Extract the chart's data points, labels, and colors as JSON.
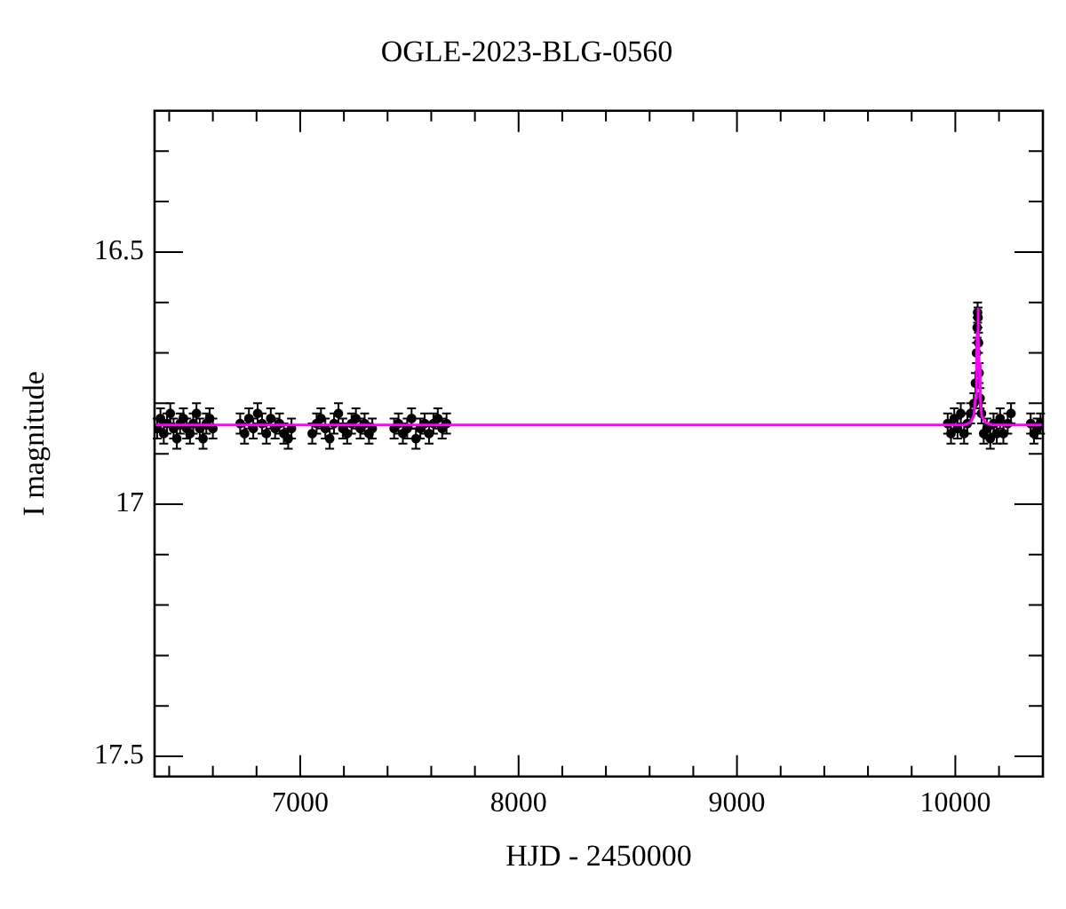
{
  "chart_data": {
    "type": "scatter",
    "title": "OGLE-2023-BLG-0560",
    "xlabel": "HJD - 2450000",
    "ylabel": "I magnitude",
    "xlim": [
      6333,
      10401
    ],
    "ylim": [
      17.54,
      16.22
    ],
    "xticks": [
      {
        "value": 6400,
        "label": null
      },
      {
        "value": 6600,
        "label": null
      },
      {
        "value": 6800,
        "label": null
      },
      7000,
      {
        "value": 7200,
        "label": null
      },
      {
        "value": 7400,
        "label": null
      },
      {
        "value": 7600,
        "label": null
      },
      {
        "value": 7800,
        "label": null
      },
      8000,
      {
        "value": 8200,
        "label": null
      },
      {
        "value": 8400,
        "label": null
      },
      {
        "value": 8600,
        "label": null
      },
      {
        "value": 8800,
        "label": null
      },
      9000,
      {
        "value": 9200,
        "label": null
      },
      {
        "value": 9400,
        "label": null
      },
      {
        "value": 9600,
        "label": null
      },
      {
        "value": 9800,
        "label": null
      },
      10000,
      {
        "value": 10200,
        "label": null
      }
    ],
    "yticks": [
      {
        "value": 16.3,
        "label": null
      },
      {
        "value": 16.4,
        "label": null
      },
      16.5,
      {
        "value": 16.6,
        "label": null
      },
      {
        "value": 16.7,
        "label": null
      },
      {
        "value": 16.8,
        "label": null
      },
      {
        "value": 16.9,
        "label": null
      },
      17,
      {
        "value": 17.1,
        "label": null
      },
      {
        "value": 17.2,
        "label": null
      },
      {
        "value": 17.3,
        "label": null
      },
      {
        "value": 17.4,
        "label": null
      },
      17.5
    ],
    "marker": "circle",
    "series": [
      {
        "type": "scatter",
        "color": "#000000",
        "x": [
          6345,
          6360,
          6375,
          6390,
          6405,
          6420,
          6435,
          6450,
          6465,
          6480,
          6495,
          6510,
          6525,
          6540,
          6555,
          6570,
          6585,
          6600,
          6725,
          6745,
          6765,
          6785,
          6805,
          6825,
          6845,
          6865,
          6885,
          6905,
          6925,
          6945,
          6960,
          7055,
          7075,
          7095,
          7115,
          7135,
          7155,
          7175,
          7195,
          7215,
          7235,
          7255,
          7275,
          7295,
          7315,
          7330,
          7430,
          7450,
          7470,
          7490,
          7510,
          7530,
          7550,
          7570,
          7590,
          7610,
          7630,
          7650,
          7670,
          9965,
          9980,
          9995,
          10010,
          10025,
          10040,
          10055,
          10070,
          10085,
          10092,
          10097,
          10100,
          10102,
          10104,
          10106,
          10109,
          10113,
          10120,
          10130,
          10145,
          10160,
          10175,
          10190,
          10205,
          10220,
          10240,
          10255,
          10345,
          10360,
          10375,
          10390
        ],
        "values": [
          16.85,
          16.83,
          16.86,
          16.84,
          16.82,
          16.85,
          16.87,
          16.84,
          16.83,
          16.85,
          16.86,
          16.84,
          16.82,
          16.85,
          16.87,
          16.84,
          16.83,
          16.85,
          16.84,
          16.86,
          16.83,
          16.85,
          16.82,
          16.84,
          16.86,
          16.83,
          16.85,
          16.84,
          16.86,
          16.87,
          16.85,
          16.86,
          16.84,
          16.83,
          16.85,
          16.87,
          16.84,
          16.82,
          16.85,
          16.86,
          16.84,
          16.83,
          16.85,
          16.84,
          16.86,
          16.85,
          16.85,
          16.84,
          16.86,
          16.85,
          16.83,
          16.87,
          16.85,
          16.84,
          16.86,
          16.84,
          16.83,
          16.85,
          16.84,
          16.84,
          16.86,
          16.83,
          16.85,
          16.82,
          16.86,
          16.84,
          16.82,
          16.8,
          16.76,
          16.7,
          16.65,
          16.62,
          16.63,
          16.68,
          16.74,
          16.79,
          16.82,
          16.86,
          16.85,
          16.87,
          16.84,
          16.86,
          16.83,
          16.86,
          16.84,
          16.82,
          16.84,
          16.86,
          16.85,
          16.84
        ],
        "errors": [
          0.02,
          0.02,
          0.02,
          0.02,
          0.02,
          0.02,
          0.02,
          0.02,
          0.02,
          0.02,
          0.02,
          0.02,
          0.02,
          0.02,
          0.02,
          0.02,
          0.02,
          0.02,
          0.02,
          0.02,
          0.02,
          0.02,
          0.02,
          0.02,
          0.02,
          0.02,
          0.02,
          0.02,
          0.02,
          0.02,
          0.02,
          0.02,
          0.02,
          0.02,
          0.02,
          0.02,
          0.02,
          0.02,
          0.02,
          0.02,
          0.02,
          0.02,
          0.02,
          0.02,
          0.02,
          0.02,
          0.02,
          0.02,
          0.02,
          0.02,
          0.02,
          0.02,
          0.02,
          0.02,
          0.02,
          0.02,
          0.02,
          0.02,
          0.02,
          0.02,
          0.02,
          0.02,
          0.02,
          0.02,
          0.02,
          0.02,
          0.02,
          0.02,
          0.02,
          0.02,
          0.02,
          0.02,
          0.02,
          0.02,
          0.02,
          0.02,
          0.02,
          0.02,
          0.02,
          0.02,
          0.02,
          0.02,
          0.02,
          0.02,
          0.02,
          0.02,
          0.02,
          0.02,
          0.02,
          0.02
        ]
      },
      {
        "type": "line",
        "color": "#ff00ff",
        "marker": "none",
        "x": [
          6333,
          10040,
          10070,
          10085,
          10092,
          10097,
          10100,
          10103,
          10106,
          10109,
          10114,
          10121,
          10136,
          10170,
          10401
        ],
        "values": [
          16.843,
          16.843,
          16.838,
          16.825,
          16.79,
          16.72,
          16.66,
          16.613,
          16.66,
          16.72,
          16.79,
          16.825,
          16.838,
          16.843,
          16.843
        ]
      }
    ]
  }
}
